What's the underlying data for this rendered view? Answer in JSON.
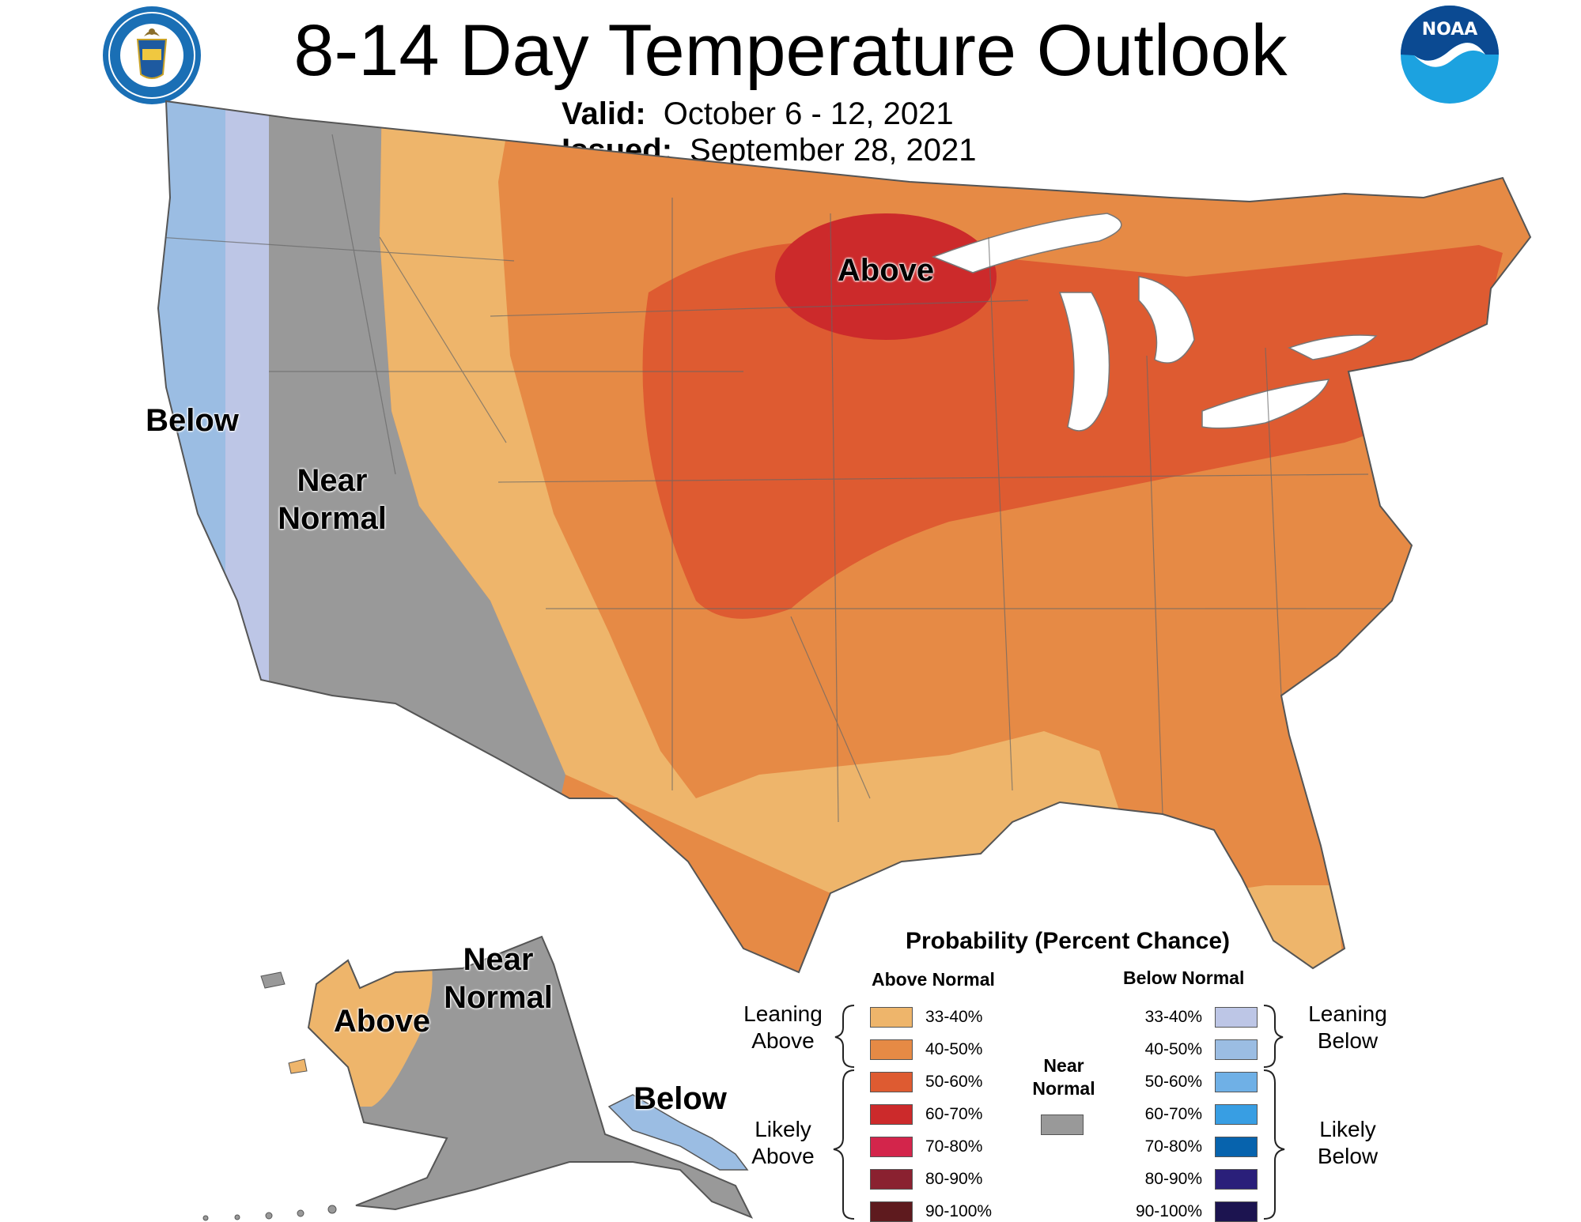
{
  "title": "8-14 Day Temperature Outlook",
  "valid": {
    "label": "Valid:",
    "value": "October 6 - 12, 2021"
  },
  "issued": {
    "label": "Issued:",
    "value": "September 28, 2021"
  },
  "logos": {
    "left": "department-of-commerce-seal",
    "right": "noaa-logo",
    "noaa_text": "NOAA"
  },
  "map_labels": {
    "contiguous": {
      "below": "Below",
      "near_normal_1": "Near",
      "near_normal_2": "Normal",
      "above": "Above"
    },
    "alaska": {
      "above": "Above",
      "near_normal_1": "Near",
      "near_normal_2": "Normal",
      "below": "Below"
    }
  },
  "colors": {
    "above_33_40": "#eeb56b",
    "above_40_50": "#e68a45",
    "above_50_60": "#de5b31",
    "above_60_70": "#cc2a2b",
    "above_70_80": "#d3254b",
    "above_80_90": "#8a2130",
    "above_90_100": "#5e1a1e",
    "below_33_40": "#bdc6e6",
    "below_40_50": "#9bbde3",
    "below_50_60": "#6fb0e6",
    "below_60_70": "#389ee3",
    "below_70_80": "#0763ad",
    "below_80_90": "#2a1f7a",
    "below_90_100": "#1c1450",
    "near_normal": "#999999"
  },
  "legend": {
    "title": "Probability (Percent Chance)",
    "above_header": "Above Normal",
    "below_header": "Below Normal",
    "above": [
      {
        "range": "33-40%",
        "color": "#eeb56b"
      },
      {
        "range": "40-50%",
        "color": "#e68a45"
      },
      {
        "range": "50-60%",
        "color": "#de5b31"
      },
      {
        "range": "60-70%",
        "color": "#cc2a2b"
      },
      {
        "range": "70-80%",
        "color": "#d3254b"
      },
      {
        "range": "80-90%",
        "color": "#8a2130"
      },
      {
        "range": "90-100%",
        "color": "#5e1a1e"
      }
    ],
    "below": [
      {
        "range": "33-40%",
        "color": "#bdc6e6"
      },
      {
        "range": "40-50%",
        "color": "#9bbde3"
      },
      {
        "range": "50-60%",
        "color": "#6fb0e6"
      },
      {
        "range": "60-70%",
        "color": "#389ee3"
      },
      {
        "range": "70-80%",
        "color": "#0763ad"
      },
      {
        "range": "80-90%",
        "color": "#2a1f7a"
      },
      {
        "range": "90-100%",
        "color": "#1c1450"
      }
    ],
    "near_normal_1": "Near",
    "near_normal_2": "Normal",
    "leaning_above_1": "Leaning",
    "leaning_above_2": "Above",
    "likely_above_1": "Likely",
    "likely_above_2": "Above",
    "leaning_below_1": "Leaning",
    "leaning_below_2": "Below",
    "likely_below_1": "Likely",
    "likely_below_2": "Below"
  }
}
